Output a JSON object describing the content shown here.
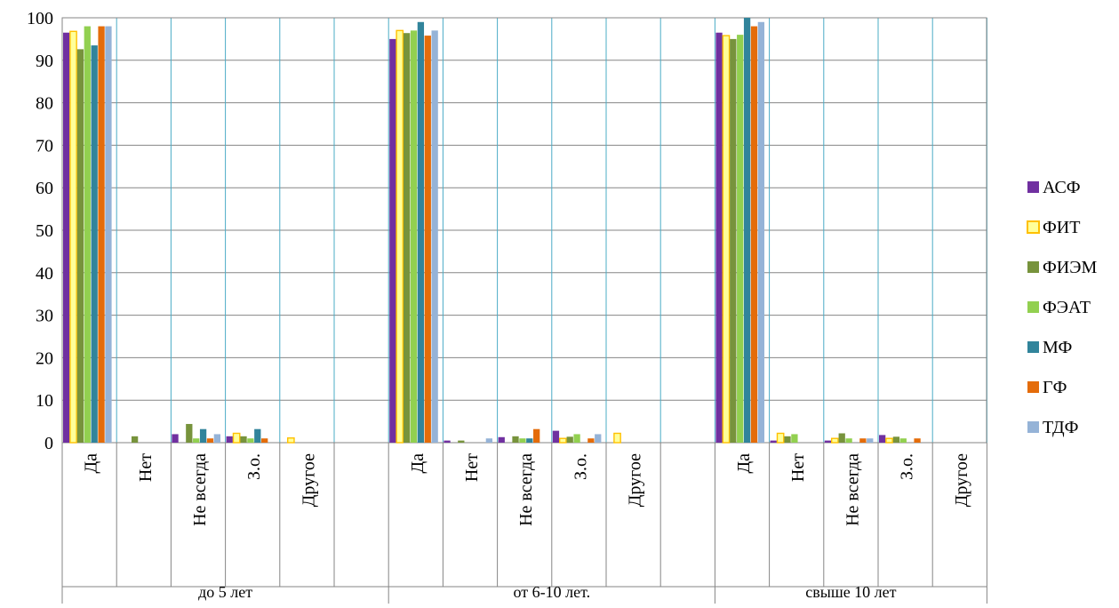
{
  "chart_data": {
    "type": "bar",
    "title": "",
    "xlabel": "",
    "ylabel": "",
    "ylim": [
      0,
      100
    ],
    "yticks": [
      0,
      10,
      20,
      30,
      40,
      50,
      60,
      70,
      80,
      90,
      100
    ],
    "grid": true,
    "legend_position": "right",
    "groups": [
      {
        "label": "до 5 лет",
        "categories": [
          "Да",
          "Нет",
          "Не всегда",
          "З.о.",
          "Другое",
          ""
        ]
      },
      {
        "label": "от 6-10 лет.",
        "categories": [
          "Да",
          "Нет",
          "Не всегда",
          "З.о.",
          "Другое",
          ""
        ]
      },
      {
        "label": "свыше 10 лет",
        "categories": [
          "Да",
          "Нет",
          "Не всегда",
          "З.о.",
          "Другое"
        ]
      }
    ],
    "series": [
      {
        "name": "АСФ",
        "color": "#7030A0",
        "values": [
          [
            96.5,
            0,
            2,
            1.5,
            0,
            0
          ],
          [
            95,
            0.5,
            1.3,
            2.8,
            0,
            0
          ],
          [
            96.5,
            0.5,
            0.5,
            1.8,
            0
          ]
        ]
      },
      {
        "name": "ФИТ",
        "color": "#FFFF99",
        "border": "#FFC000",
        "values": [
          [
            96.8,
            0,
            0,
            2.2,
            1.1,
            0
          ],
          [
            97,
            0,
            0,
            1,
            2.2,
            0
          ],
          [
            95.8,
            2.2,
            1,
            1,
            0
          ]
        ]
      },
      {
        "name": "ФИЭМ",
        "color": "#77933C",
        "values": [
          [
            92.6,
            1.5,
            4.4,
            1.5,
            0,
            0
          ],
          [
            96.4,
            0.5,
            1.5,
            1.4,
            0,
            0
          ],
          [
            95,
            1.5,
            2.2,
            1.4,
            0
          ]
        ]
      },
      {
        "name": "ФЭАТ",
        "color": "#92D050",
        "values": [
          [
            98,
            0,
            1,
            1,
            0,
            0
          ],
          [
            97,
            0,
            1,
            2,
            0,
            0
          ],
          [
            96,
            2,
            1,
            1,
            0
          ]
        ]
      },
      {
        "name": "МФ",
        "color": "#31849B",
        "values": [
          [
            93.5,
            0,
            3.2,
            3.2,
            0,
            0
          ],
          [
            99,
            0,
            1,
            0,
            0,
            0
          ],
          [
            100,
            0,
            0,
            0,
            0
          ]
        ]
      },
      {
        "name": "ГФ",
        "color": "#E46C0A",
        "values": [
          [
            98,
            0,
            1,
            1,
            0,
            0
          ],
          [
            95.8,
            0,
            3.2,
            1,
            0,
            0
          ],
          [
            98,
            0,
            1,
            1,
            0
          ]
        ]
      },
      {
        "name": "ТДФ",
        "color": "#95B3D7",
        "values": [
          [
            98,
            0,
            2,
            0,
            0,
            0
          ],
          [
            97,
            1,
            0,
            2,
            0,
            0
          ],
          [
            99,
            0,
            1,
            0,
            0
          ]
        ]
      }
    ]
  }
}
